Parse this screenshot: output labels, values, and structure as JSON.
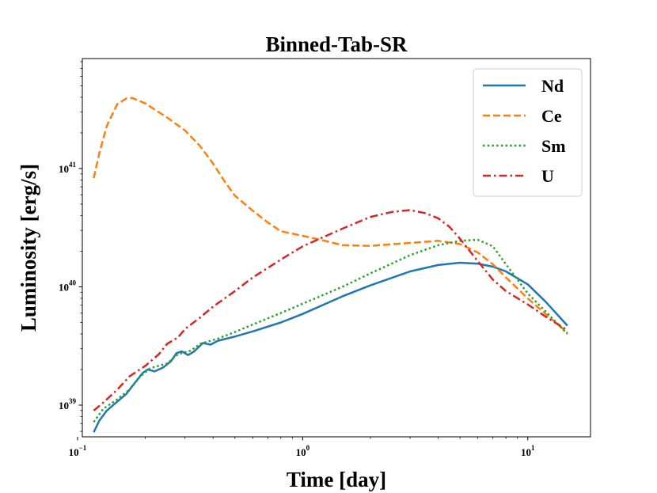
{
  "chart_data": {
    "type": "line",
    "title": "Binned-Tab-SR",
    "xlabel": "Time [day]",
    "ylabel": "Luminosity [erg/s]",
    "xscale": "log",
    "yscale": "log",
    "xlim": [
      0.105,
      19.0
    ],
    "ylim": [
      5.4e+38,
      8.5e+41
    ],
    "xticks": [
      {
        "value": 0.1,
        "base": "10",
        "exp": "−1"
      },
      {
        "value": 1,
        "base": "10",
        "exp": "0"
      },
      {
        "value": 10,
        "base": "10",
        "exp": "1"
      }
    ],
    "yticks": [
      {
        "value": 1e+39,
        "base": "10",
        "exp": "39"
      },
      {
        "value": 1e+40,
        "base": "10",
        "exp": "40"
      },
      {
        "value": 1e+41,
        "base": "10",
        "exp": "41"
      }
    ],
    "legend_position": "top-right",
    "series": [
      {
        "name": "Nd",
        "color": "#1f77b4",
        "dash": "solid",
        "points": [
          [
            0.118,
            5.9e+38
          ],
          [
            0.125,
            7.4e+38
          ],
          [
            0.135,
            9e+38
          ],
          [
            0.15,
            1.07e+39
          ],
          [
            0.165,
            1.25e+39
          ],
          [
            0.18,
            1.55e+39
          ],
          [
            0.195,
            1.88e+39
          ],
          [
            0.205,
            2e+39
          ],
          [
            0.22,
            1.93e+39
          ],
          [
            0.24,
            2.08e+39
          ],
          [
            0.26,
            2.35e+39
          ],
          [
            0.275,
            2.75e+39
          ],
          [
            0.29,
            2.85e+39
          ],
          [
            0.31,
            2.65e+39
          ],
          [
            0.33,
            2.85e+39
          ],
          [
            0.36,
            3.35e+39
          ],
          [
            0.39,
            3.25e+39
          ],
          [
            0.42,
            3.5e+39
          ],
          [
            0.5,
            3.8e+39
          ],
          [
            0.6,
            4.2e+39
          ],
          [
            0.8,
            5e+39
          ],
          [
            1.0,
            5.9e+39
          ],
          [
            1.5,
            8.3e+39
          ],
          [
            2.0,
            1.03e+40
          ],
          [
            3.0,
            1.35e+40
          ],
          [
            4.0,
            1.53e+40
          ],
          [
            5.0,
            1.6e+40
          ],
          [
            6.0,
            1.57e+40
          ],
          [
            7.0,
            1.48e+40
          ],
          [
            8.0,
            1.35e+40
          ],
          [
            10.0,
            1.05e+40
          ],
          [
            12.0,
            7.5e+39
          ],
          [
            15.0,
            4.7e+39
          ]
        ]
      },
      {
        "name": "Ce",
        "color": "#ff7f0e",
        "dash": "dashed",
        "points": [
          [
            0.118,
            8.3e+40
          ],
          [
            0.125,
            1.35e+41
          ],
          [
            0.135,
            2.3e+41
          ],
          [
            0.15,
            3.5e+41
          ],
          [
            0.165,
            3.92e+41
          ],
          [
            0.175,
            3.95e+41
          ],
          [
            0.2,
            3.55e+41
          ],
          [
            0.25,
            2.7e+41
          ],
          [
            0.3,
            2.1e+41
          ],
          [
            0.35,
            1.55e+41
          ],
          [
            0.4,
            1.1e+41
          ],
          [
            0.45,
            7.8e+40
          ],
          [
            0.5,
            5.9e+40
          ],
          [
            0.6,
            4.4e+40
          ],
          [
            0.7,
            3.5e+40
          ],
          [
            0.8,
            2.95e+40
          ],
          [
            1.0,
            2.7e+40
          ],
          [
            1.2,
            2.5e+40
          ],
          [
            1.5,
            2.25e+40
          ],
          [
            2.0,
            2.22e+40
          ],
          [
            3.0,
            2.35e+40
          ],
          [
            4.0,
            2.45e+40
          ],
          [
            5.0,
            2.3e+40
          ],
          [
            6.0,
            1.95e+40
          ],
          [
            7.0,
            1.55e+40
          ],
          [
            8.0,
            1.2e+40
          ],
          [
            10.0,
            8e+39
          ],
          [
            12.0,
            5.9e+39
          ],
          [
            15.0,
            4.1e+39
          ]
        ]
      },
      {
        "name": "Sm",
        "color": "#2ca02c",
        "dash": "dotted",
        "points": [
          [
            0.118,
            7.2e+38
          ],
          [
            0.13,
            9.3e+38
          ],
          [
            0.15,
            1.12e+39
          ],
          [
            0.17,
            1.35e+39
          ],
          [
            0.19,
            1.75e+39
          ],
          [
            0.21,
            2.05e+39
          ],
          [
            0.25,
            2.25e+39
          ],
          [
            0.28,
            2.7e+39
          ],
          [
            0.32,
            2.9e+39
          ],
          [
            0.35,
            3.3e+39
          ],
          [
            0.42,
            3.65e+39
          ],
          [
            0.5,
            4.15e+39
          ],
          [
            0.6,
            4.8e+39
          ],
          [
            0.8,
            6e+39
          ],
          [
            1.0,
            7.2e+39
          ],
          [
            1.5,
            1e+40
          ],
          [
            2.0,
            1.3e+40
          ],
          [
            3.0,
            1.85e+40
          ],
          [
            4.0,
            2.25e+40
          ],
          [
            5.0,
            2.45e+40
          ],
          [
            6.0,
            2.5e+40
          ],
          [
            7.0,
            2.2e+40
          ],
          [
            8.0,
            1.55e+40
          ],
          [
            10.0,
            8.8e+39
          ],
          [
            12.0,
            6.2e+39
          ],
          [
            15.0,
            4e+39
          ]
        ]
      },
      {
        "name": "U",
        "color": "#d62728",
        "dash": "dashdot",
        "points": [
          [
            0.118,
            9e+38
          ],
          [
            0.13,
            1.05e+39
          ],
          [
            0.15,
            1.35e+39
          ],
          [
            0.17,
            1.75e+39
          ],
          [
            0.2,
            2.15e+39
          ],
          [
            0.23,
            2.7e+39
          ],
          [
            0.25,
            3.3e+39
          ],
          [
            0.28,
            3.75e+39
          ],
          [
            0.3,
            4.4e+39
          ],
          [
            0.35,
            5.5e+39
          ],
          [
            0.4,
            6.8e+39
          ],
          [
            0.5,
            9.2e+39
          ],
          [
            0.6,
            1.2e+40
          ],
          [
            0.8,
            1.7e+40
          ],
          [
            1.0,
            2.2e+40
          ],
          [
            1.5,
            3.1e+40
          ],
          [
            2.0,
            3.9e+40
          ],
          [
            2.5,
            4.3e+40
          ],
          [
            3.0,
            4.45e+40
          ],
          [
            3.5,
            4.2e+40
          ],
          [
            4.0,
            3.8e+40
          ],
          [
            4.5,
            3.2e+40
          ],
          [
            5.0,
            2.55e+40
          ],
          [
            6.0,
            1.65e+40
          ],
          [
            7.0,
            1.15e+40
          ],
          [
            8.0,
            9.2e+39
          ],
          [
            10.0,
            7.1e+39
          ],
          [
            12.0,
            5.6e+39
          ],
          [
            15.0,
            4.3e+39
          ]
        ]
      }
    ]
  }
}
